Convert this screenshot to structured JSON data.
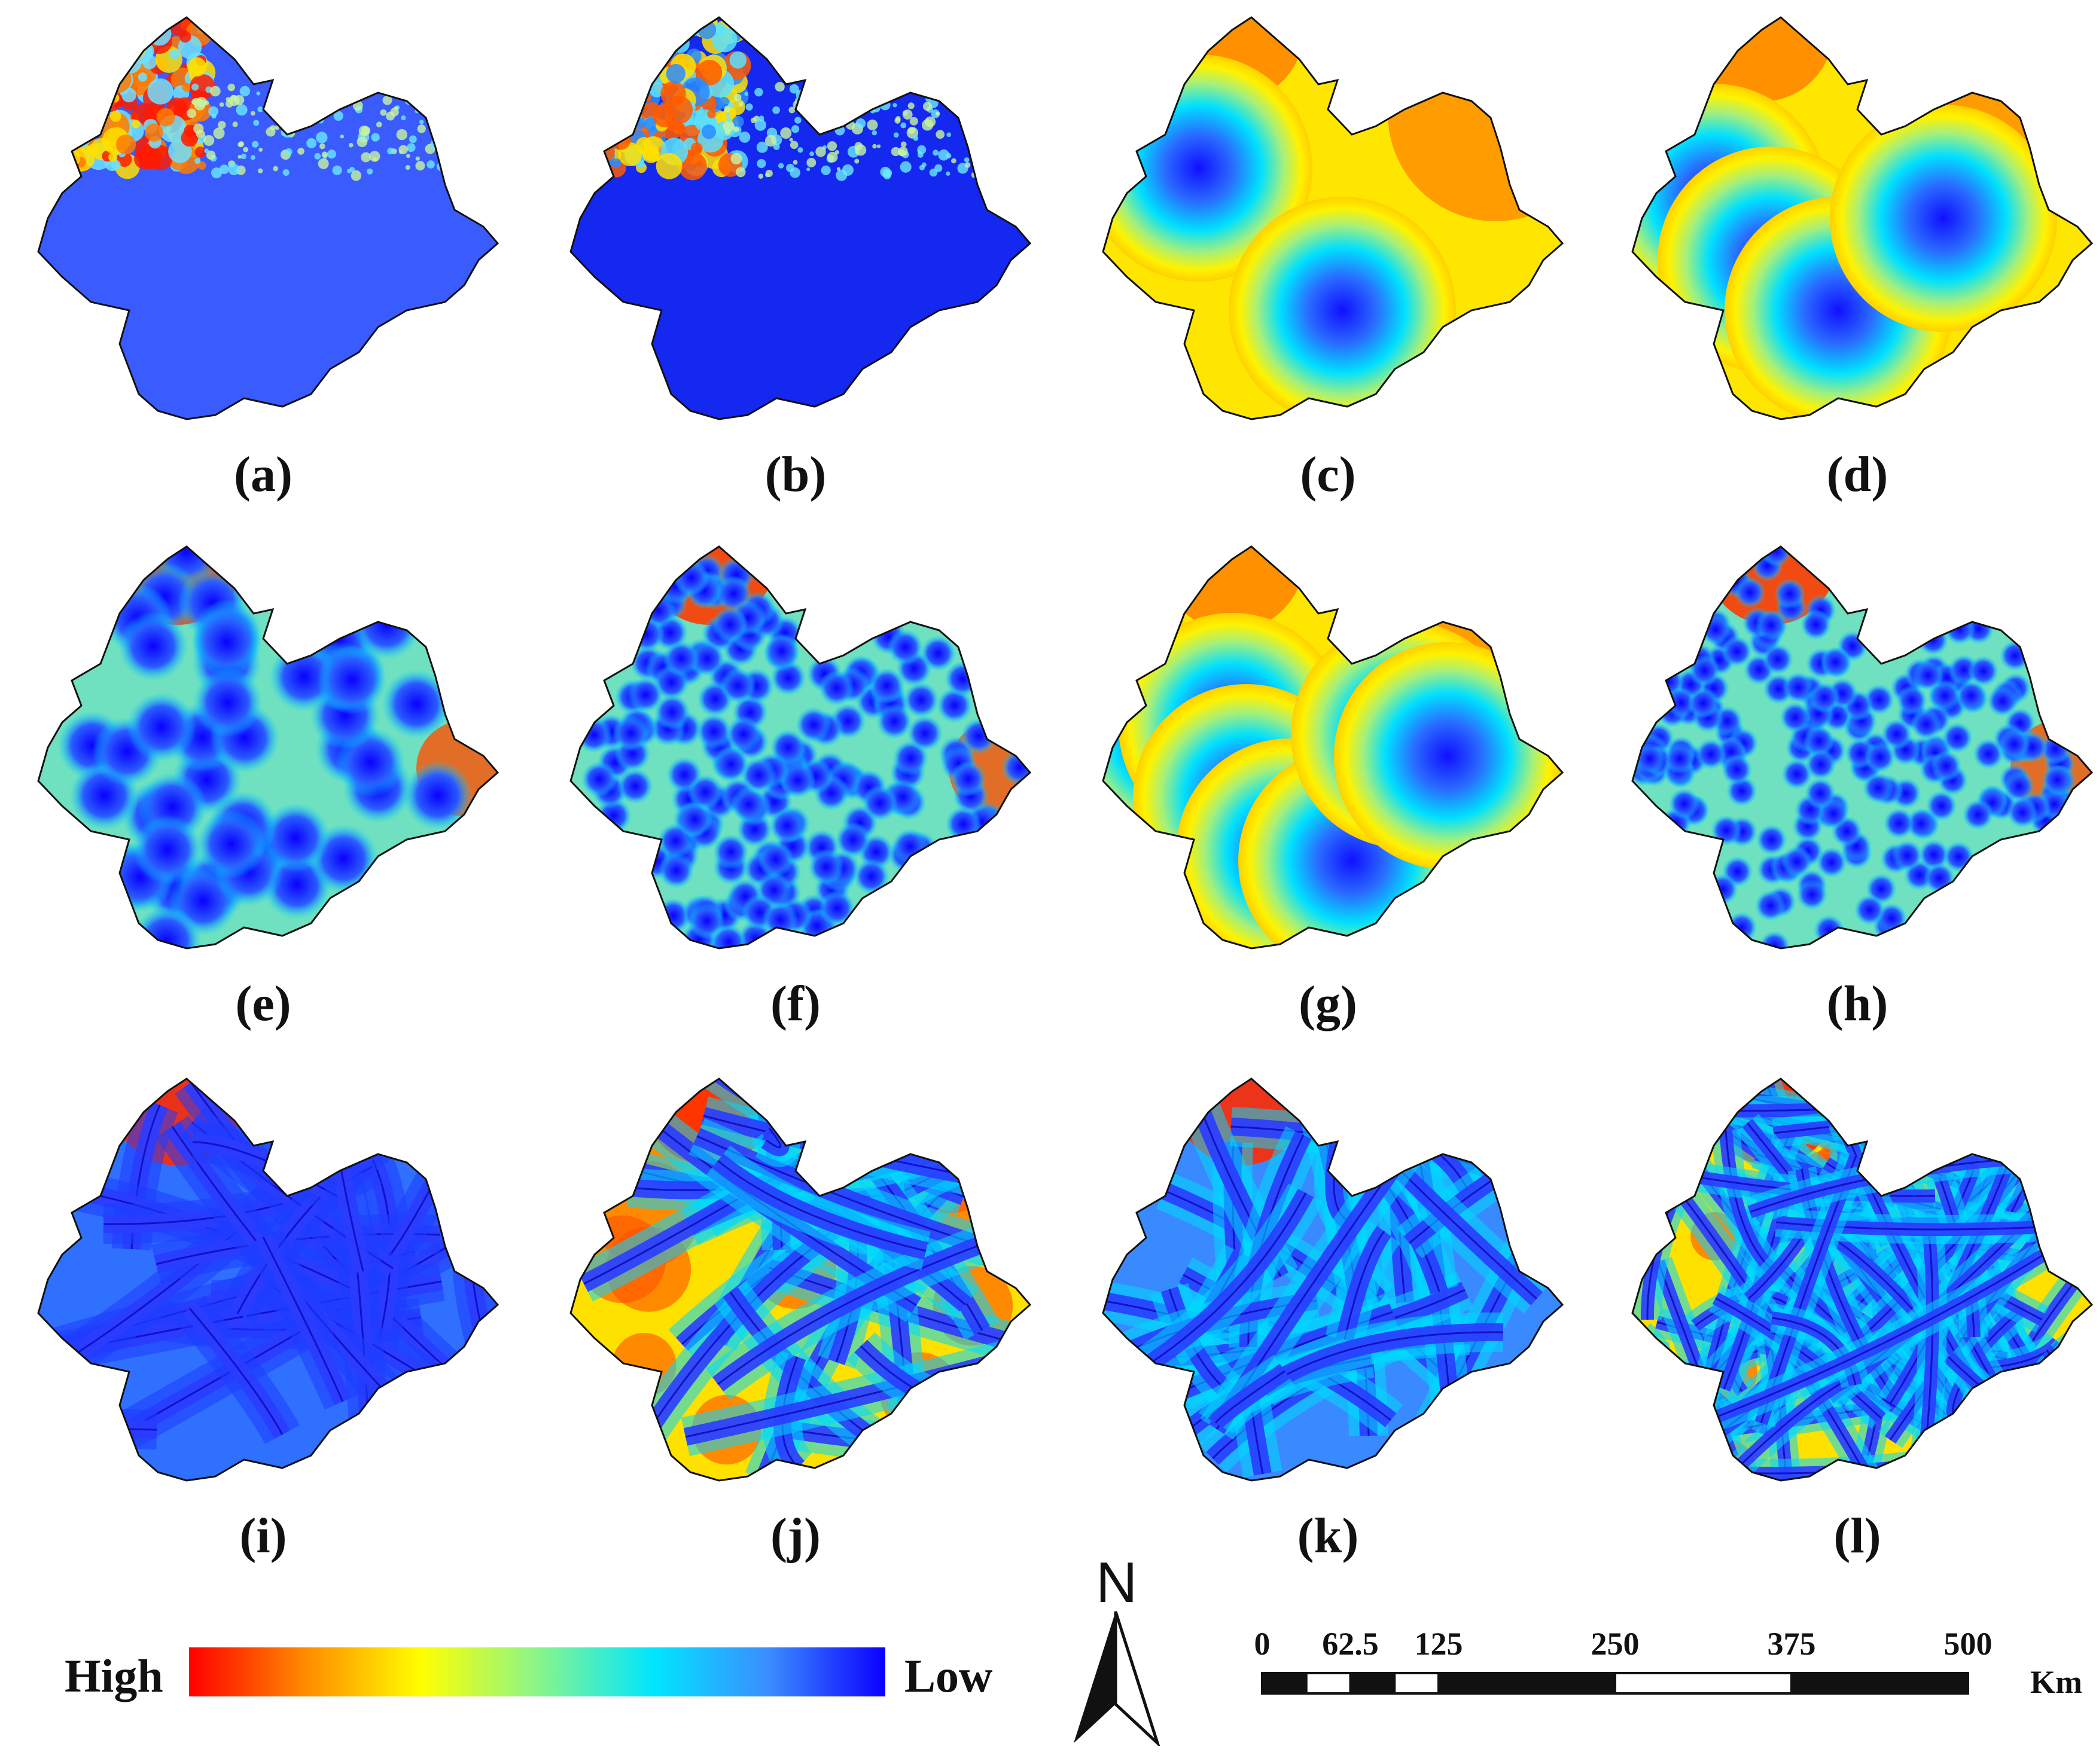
{
  "panels": [
    {
      "label": "(a)",
      "style": "terrain"
    },
    {
      "label": "(b)",
      "style": "landcover"
    },
    {
      "label": "(c)",
      "style": "points",
      "centers": [
        [
          0.23,
          0.38
        ],
        [
          0.53,
          0.72
        ]
      ]
    },
    {
      "label": "(d)",
      "style": "points",
      "centers": [
        [
          0.2,
          0.45
        ],
        [
          0.32,
          0.6
        ],
        [
          0.46,
          0.72
        ],
        [
          0.68,
          0.5
        ]
      ]
    },
    {
      "label": "(e)",
      "style": "many",
      "count": 45
    },
    {
      "label": "(f)",
      "style": "dense",
      "count": 170
    },
    {
      "label": "(g)",
      "style": "points",
      "centers": [
        [
          0.18,
          0.47
        ],
        [
          0.3,
          0.45
        ],
        [
          0.33,
          0.62
        ],
        [
          0.42,
          0.75
        ],
        [
          0.55,
          0.77
        ],
        [
          0.66,
          0.47
        ],
        [
          0.75,
          0.52
        ]
      ]
    },
    {
      "label": "(h)",
      "style": "dense2",
      "count": 190
    },
    {
      "label": "(i)",
      "style": "roads",
      "count": 24
    },
    {
      "label": "(j)",
      "style": "roads2",
      "count": 30
    },
    {
      "label": "(k)",
      "style": "rivers",
      "count": 30
    },
    {
      "label": "(l)",
      "style": "roads3",
      "count": 80
    }
  ],
  "legend": {
    "high_label": "High",
    "low_label": "Low",
    "colors": [
      "#ff0000",
      "#ff8a00",
      "#ffff00",
      "#8af58a",
      "#00e6ff",
      "#3c8cff",
      "#0a00ff"
    ]
  },
  "north_arrow": {
    "letter": "N"
  },
  "scale_bar": {
    "ticks": [
      "0",
      "62.5",
      "125",
      "250",
      "375",
      "500"
    ],
    "tick_values": [
      0,
      62.5,
      125,
      250,
      375,
      500
    ],
    "unit": "Km"
  }
}
